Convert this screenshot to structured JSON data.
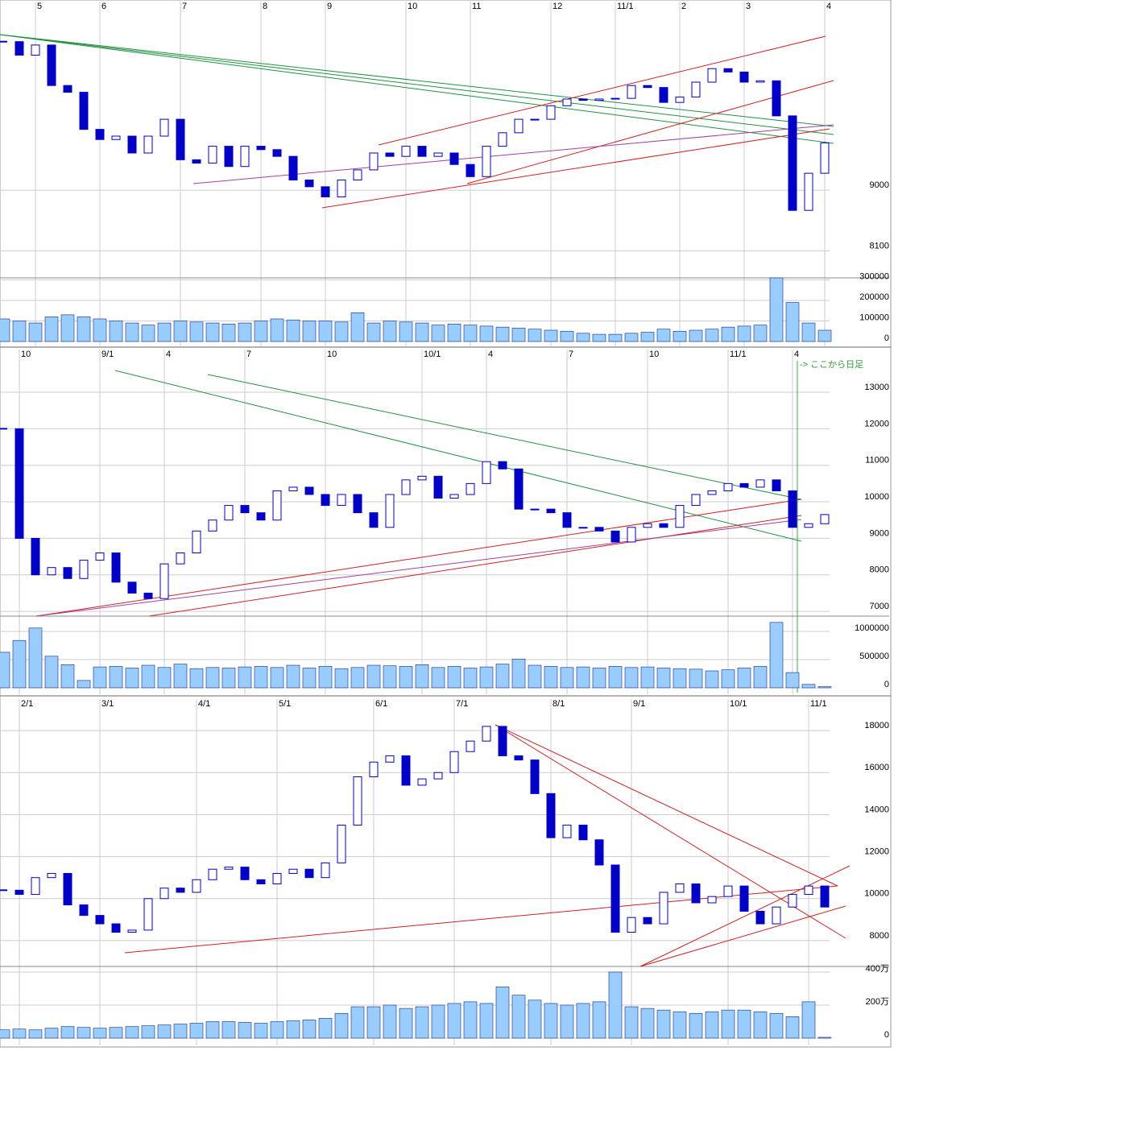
{
  "chart_data": [
    {
      "type": "candlestick",
      "color": "#0000c8",
      "grid": true,
      "categories": [
        null,
        null,
        "5",
        null,
        null,
        null,
        "6",
        null,
        null,
        null,
        null,
        "7",
        null,
        null,
        null,
        null,
        "8",
        null,
        null,
        null,
        "9",
        null,
        null,
        null,
        null,
        "10",
        null,
        null,
        null,
        "11",
        null,
        null,
        null,
        null,
        "12",
        null,
        null,
        null,
        "11/1",
        null,
        null,
        null,
        "2",
        null,
        null,
        null,
        "3",
        null,
        null,
        null,
        null,
        "4"
      ],
      "values": [
        11200,
        11000,
        11150,
        10550,
        10450,
        9900,
        9750,
        9800,
        9550,
        9800,
        10050,
        9450,
        9400,
        9650,
        9350,
        9650,
        9600,
        9500,
        9150,
        9050,
        8900,
        9150,
        9300,
        9550,
        9500,
        9650,
        9500,
        9550,
        9380,
        9200,
        9650,
        9850,
        10050,
        10050,
        10250,
        10350,
        10330,
        10350,
        10360,
        10550,
        10520,
        10300,
        10380,
        10600,
        10800,
        10750,
        10600,
        10620,
        10100,
        8700,
        9250,
        9700
      ],
      "ylim": [
        7700,
        11650
      ],
      "yticks": [
        9000,
        8100
      ],
      "volume": {
        "color": "#99ccff",
        "ylim": [
          0,
          310000
        ],
        "yticks": [
          300000,
          200000,
          100000,
          0
        ],
        "values": [
          110000,
          100000,
          90000,
          120000,
          130000,
          120000,
          110000,
          100000,
          90000,
          80000,
          90000,
          100000,
          95000,
          90000,
          85000,
          90000,
          100000,
          110000,
          105000,
          100000,
          100000,
          95000,
          140000,
          90000,
          100000,
          95000,
          90000,
          80000,
          85000,
          80000,
          75000,
          70000,
          65000,
          60000,
          55000,
          50000,
          40000,
          35000,
          35000,
          40000,
          45000,
          60000,
          50000,
          55000,
          60000,
          70000,
          75000,
          80000,
          310000,
          190000,
          90000,
          55000
        ]
      }
    },
    {
      "type": "candlestick",
      "color": "#0000c8",
      "grid": true,
      "annotation": "-> ここから日足",
      "categories": [
        null,
        "10",
        null,
        null,
        null,
        null,
        "9/1",
        null,
        null,
        null,
        "4",
        null,
        null,
        null,
        null,
        "7",
        null,
        null,
        null,
        null,
        "10",
        null,
        null,
        null,
        null,
        null,
        "10/1",
        null,
        null,
        null,
        "4",
        null,
        null,
        null,
        null,
        "7",
        null,
        null,
        null,
        null,
        "10",
        null,
        null,
        null,
        null,
        "11/1",
        null,
        null,
        null,
        "4",
        null,
        null
      ],
      "values": [
        12000,
        9000,
        8000,
        8200,
        7900,
        8400,
        8600,
        7800,
        7500,
        7350,
        8300,
        8600,
        9200,
        9500,
        9900,
        9700,
        9500,
        10300,
        10400,
        10200,
        9900,
        10200,
        9700,
        9300,
        10200,
        10600,
        10700,
        10100,
        10200,
        10500,
        11100,
        10900,
        9800,
        9800,
        9700,
        9300,
        9300,
        9200,
        8900,
        9300,
        9400,
        9300,
        9900,
        10200,
        10300,
        10500,
        10400,
        10600,
        10300,
        9300,
        9400,
        9650
      ],
      "ylim": [
        6870,
        13860
      ],
      "yticks": [
        13000,
        12000,
        11000,
        10000,
        9000,
        8000,
        7000
      ],
      "volume": {
        "color": "#99ccff",
        "ylim": [
          0,
          1200000
        ],
        "yticks": [
          1000000,
          500000,
          0
        ],
        "values": [
          630000,
          840000,
          1060000,
          560000,
          410000,
          130000,
          370000,
          380000,
          350000,
          400000,
          360000,
          420000,
          340000,
          360000,
          350000,
          370000,
          380000,
          360000,
          400000,
          350000,
          380000,
          340000,
          360000,
          400000,
          390000,
          380000,
          410000,
          360000,
          380000,
          350000,
          370000,
          420000,
          510000,
          400000,
          380000,
          360000,
          370000,
          350000,
          380000,
          360000,
          370000,
          350000,
          340000,
          330000,
          300000,
          320000,
          350000,
          380000,
          1160000,
          270000,
          60000,
          20000
        ]
      }
    },
    {
      "type": "candlestick",
      "color": "#0000c8",
      "grid": true,
      "categories": [
        null,
        "2/1",
        null,
        null,
        null,
        null,
        "3/1",
        null,
        null,
        null,
        null,
        null,
        "4/1",
        null,
        null,
        null,
        null,
        "5/1",
        null,
        null,
        null,
        null,
        null,
        "6/1",
        null,
        null,
        null,
        null,
        "7/1",
        null,
        null,
        null,
        null,
        null,
        "8/1",
        null,
        null,
        null,
        null,
        "9/1",
        null,
        null,
        null,
        null,
        null,
        "10/1",
        null,
        null,
        null,
        null,
        "11/1",
        null
      ],
      "values": [
        10400,
        10200,
        11000,
        11200,
        9700,
        9200,
        8800,
        8400,
        8500,
        10000,
        10500,
        10300,
        10900,
        11400,
        11500,
        10900,
        10700,
        11200,
        11400,
        11000,
        11700,
        13500,
        15800,
        16500,
        16800,
        15400,
        15700,
        16000,
        17000,
        17500,
        18200,
        16800,
        16600,
        15000,
        12900,
        13500,
        12800,
        11600,
        8400,
        9100,
        8800,
        10300,
        10700,
        9800,
        10100,
        10600,
        9400,
        8800,
        9600,
        10200,
        10600,
        9600
      ],
      "ylim": [
        6770,
        19040
      ],
      "yticks": [
        18000,
        16000,
        14000,
        12000,
        10000,
        8000
      ],
      "volume": {
        "color": "#99ccff",
        "ylim": [
          0,
          4340000
        ],
        "yticks": [
          {
            "value": 4000000,
            "label": "400万"
          },
          {
            "value": 2000000,
            "label": "200万"
          },
          0
        ],
        "values": [
          500000,
          550000,
          500000,
          600000,
          700000,
          650000,
          600000,
          650000,
          700000,
          750000,
          800000,
          850000,
          900000,
          1000000,
          1000000,
          950000,
          900000,
          1000000,
          1050000,
          1100000,
          1200000,
          1500000,
          1900000,
          1900000,
          2000000,
          1800000,
          1900000,
          2000000,
          2100000,
          2200000,
          2100000,
          3100000,
          2600000,
          2300000,
          2100000,
          2000000,
          2100000,
          2200000,
          4000000,
          1900000,
          1800000,
          1700000,
          1600000,
          1500000,
          1600000,
          1700000,
          1700000,
          1600000,
          1500000,
          1300000,
          2200000,
          50000
        ]
      }
    }
  ]
}
